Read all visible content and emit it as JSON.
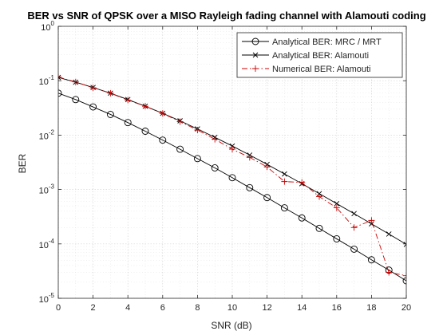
{
  "chart_data": {
    "type": "line",
    "title": "BER vs SNR of QPSK over a MISO Rayleigh fading channel with Alamouti coding",
    "xlabel": "SNR (dB)",
    "ylabel": "BER",
    "xlim": [
      0,
      20
    ],
    "ylim": [
      1e-05,
      1
    ],
    "yscale": "log",
    "grid": true,
    "minor_grid": true,
    "legend_position": "top-right",
    "x_ticks": [
      "0",
      "2",
      "4",
      "6",
      "8",
      "10",
      "12",
      "14",
      "16",
      "18",
      "20"
    ],
    "y_ticks": [
      {
        "base": "10",
        "exp": "-5",
        "value": 1e-05
      },
      {
        "base": "10",
        "exp": "-4",
        "value": 0.0001
      },
      {
        "base": "10",
        "exp": "-3",
        "value": 0.001
      },
      {
        "base": "10",
        "exp": "-2",
        "value": 0.01
      },
      {
        "base": "10",
        "exp": "-1",
        "value": 0.1
      },
      {
        "base": "10",
        "exp": "0",
        "value": 1
      }
    ],
    "x": [
      0,
      1,
      2,
      3,
      4,
      5,
      6,
      7,
      8,
      9,
      10,
      11,
      12,
      13,
      14,
      15,
      16,
      17,
      18,
      19,
      20
    ],
    "series": [
      {
        "name": "Analytical BER: MRC / MRT",
        "color": "#000000",
        "line_style": "solid",
        "marker": "circle",
        "values": [
          0.059,
          0.045,
          0.033,
          0.024,
          0.017,
          0.0118,
          0.0081,
          0.0055,
          0.0037,
          0.0025,
          0.00165,
          0.00108,
          0.00071,
          0.00046,
          0.0003,
          0.000193,
          0.000124,
          8e-05,
          5.1e-05,
          3.3e-05,
          2.1e-05
        ]
      },
      {
        "name": "Analytical BER: Alamouti",
        "color": "#000000",
        "line_style": "solid",
        "marker": "x",
        "values": [
          0.115,
          0.094,
          0.075,
          0.059,
          0.045,
          0.034,
          0.0252,
          0.0183,
          0.013,
          0.0091,
          0.0063,
          0.0043,
          0.0029,
          0.00193,
          0.00128,
          0.00084,
          0.00055,
          0.00036,
          0.000234,
          0.000152,
          9.8e-05
        ]
      },
      {
        "name": "Numerical BER: Alamouti",
        "color": "#cc0000",
        "line_style": "dashdot",
        "marker": "plus",
        "values": [
          0.117,
          0.095,
          0.074,
          0.059,
          0.044,
          0.034,
          0.025,
          0.0177,
          0.0124,
          0.0084,
          0.0055,
          0.0039,
          0.0026,
          0.0014,
          0.00135,
          0.00074,
          0.00046,
          0.0002,
          0.00027,
          3e-05,
          2.6e-05
        ]
      }
    ]
  }
}
